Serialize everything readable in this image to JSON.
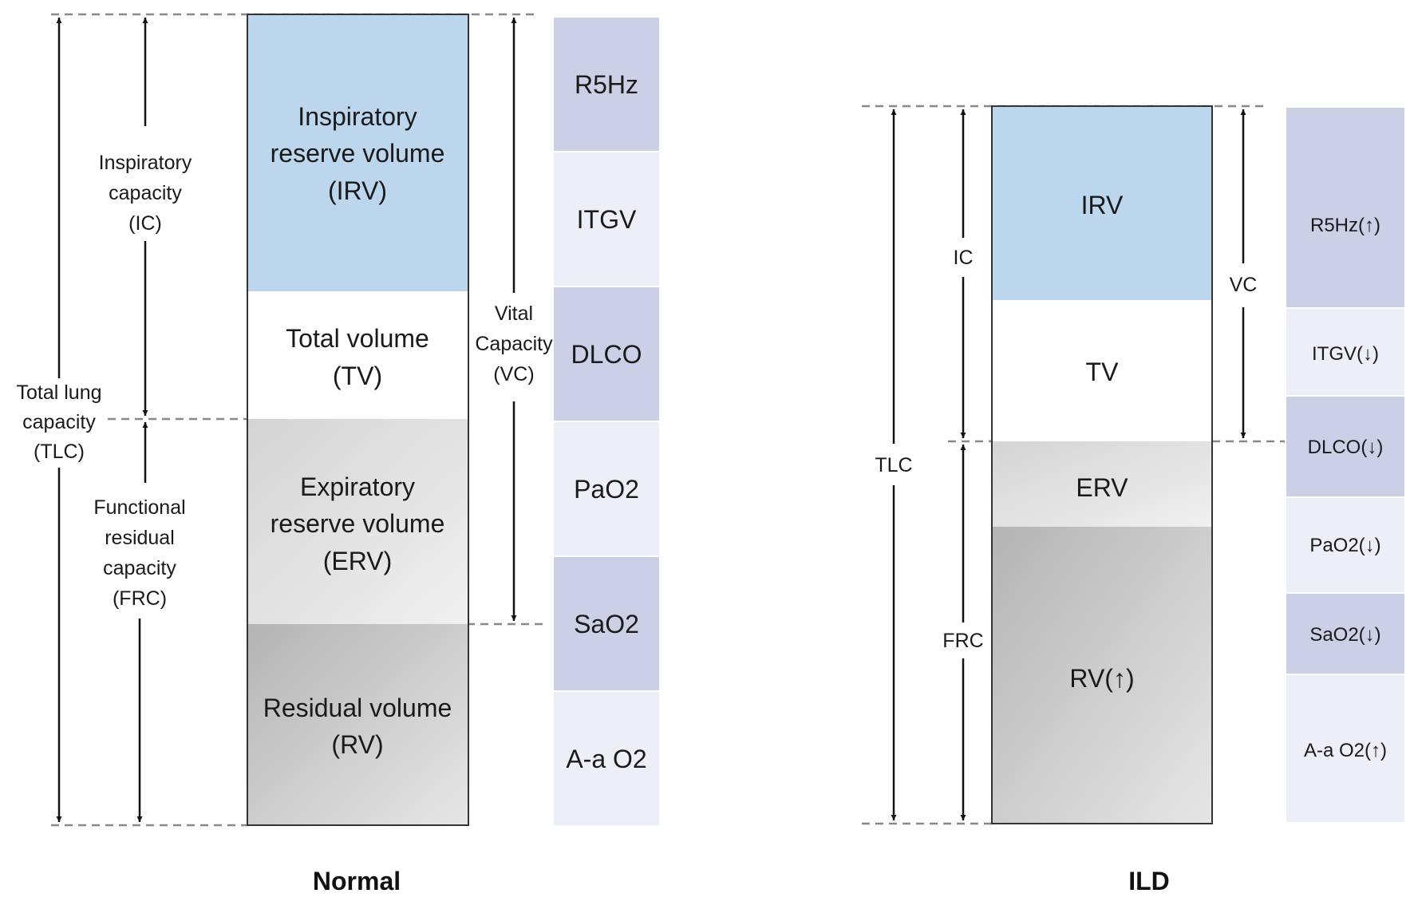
{
  "normal": {
    "caption": "Normal",
    "volumes": {
      "irv": [
        "Inspiratory",
        "reserve volume",
        "(IRV)"
      ],
      "tv": [
        "Total volume",
        "(TV)"
      ],
      "erv": [
        "Expiratory",
        "reserve volume",
        "(ERV)"
      ],
      "rv": [
        "Residual volume",
        "(RV)"
      ]
    },
    "capacities": {
      "tlc": [
        "Total lung",
        "capacity",
        "(TLC)"
      ],
      "ic": [
        "Inspiratory",
        "capacity",
        "(IC)"
      ],
      "frc": [
        "Functional",
        "residual",
        "capacity",
        "(FRC)"
      ],
      "vc": [
        "Vital",
        "Capacity",
        "(VC)"
      ]
    },
    "tests": [
      "R5Hz",
      "ITGV",
      "DLCO",
      "PaO2",
      "SaO2",
      "A-a O2"
    ]
  },
  "ild": {
    "caption": "ILD",
    "volumes": {
      "irv": "IRV",
      "tv": "TV",
      "erv": "ERV",
      "rv": "RV(↑)"
    },
    "capacities": {
      "tlc": "TLC",
      "ic": "IC",
      "frc": "FRC",
      "vc": "VC"
    },
    "tests": [
      "R5Hz(↑)",
      "ITGV(↓)",
      "DLCO(↓)",
      "PaO2(↓)",
      "SaO2(↓)",
      "A-a O2(↑)"
    ]
  },
  "colors": {
    "irv": "#bcd6ee",
    "tv": "#ffffff",
    "erv_top": "#d4d4d4",
    "erv_bottom": "#f0f0f0",
    "rv_top": "#b4b4b4",
    "rv_bottom": "#e6e6e6",
    "test_dark": "#ccd0e6",
    "test_light": "#eceff8",
    "outline": "#333333",
    "dashed": "#888888"
  }
}
